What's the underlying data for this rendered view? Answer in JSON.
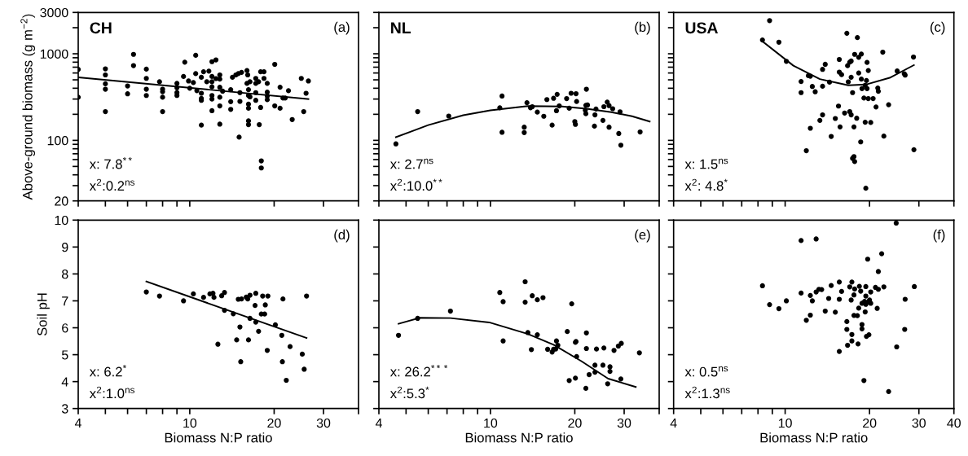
{
  "chart_data": [
    {
      "type": "scatter",
      "title": "CH",
      "ylabel": "Above-ground biomass (g m$^{−2}$)",
      "log": "xy",
      "tick_labels": "y",
      "xlim": [
        4,
        40
      ],
      "xticks": [
        4,
        {
          "value": 5,
          "label": null
        },
        {
          "value": 6,
          "label": null
        },
        {
          "value": 7,
          "label": null
        },
        {
          "value": 8,
          "label": null
        },
        {
          "value": 9,
          "label": null
        },
        10,
        20,
        30,
        40
      ],
      "ylim": [
        20,
        3000
      ],
      "yticks": [
        20,
        {
          "value": 30,
          "label": null
        },
        {
          "value": 40,
          "label": null
        },
        {
          "value": 50,
          "label": null
        },
        {
          "value": 60,
          "label": null
        },
        {
          "value": 70,
          "label": null
        },
        {
          "value": 80,
          "label": null
        },
        {
          "value": 90,
          "label": null
        },
        100,
        {
          "value": 200,
          "label": null
        },
        {
          "value": 300,
          "label": null
        },
        {
          "value": 400,
          "label": null
        },
        {
          "value": 500,
          "label": null
        },
        {
          "value": 600,
          "label": null
        },
        {
          "value": 700,
          "label": null
        },
        {
          "value": 800,
          "label": null
        },
        {
          "value": 900,
          "label": null
        },
        1000,
        {
          "value": 2000,
          "label": null
        },
        3000
      ],
      "annotations": [
        "(a)",
        "x: 7.8$^{**}$",
        "x$^{2}$:0.2$^{ns}$"
      ],
      "series": [
        {
          "marker": "circle",
          "color": "#000000",
          "x": [
            4,
            4,
            5.0,
            5.0,
            5.0,
            5.0,
            5.0,
            6.0,
            6.0,
            6.3,
            6.3,
            7.0,
            7.0,
            7.0,
            7.0,
            7.8,
            8.0,
            8.0,
            8.0,
            8.0,
            9.0,
            9.0,
            9.0,
            9.0,
            9.5,
            9.6,
            9.9,
            10.0,
            10.3,
            10.5,
            10.5,
            10.6,
            11.0,
            11.0,
            11.0,
            11.0,
            11.0,
            11.2,
            11.5,
            11.7,
            12.0,
            12.0,
            12.0,
            12.0,
            12.0,
            12.0,
            12.0,
            12.4,
            12.4,
            12.8,
            12.8,
            12.8,
            12.8,
            12.8,
            12.8,
            13.1,
            14.0,
            14.0,
            14.0,
            14.2,
            14.6,
            14.9,
            15.0,
            15.1,
            15.1,
            15.3,
            16.0,
            16.0,
            16.1,
            16.2,
            16.2,
            16.2,
            16.2,
            16.2,
            16.2,
            16.4,
            16.4,
            17.2,
            17.2,
            17.2,
            17.2,
            17.6,
            17.7,
            17.9,
            17.9,
            18.0,
            18.0,
            18.4,
            18.4,
            18.9,
            18.9,
            18.9,
            18.9,
            20.1,
            20.1,
            21.0,
            21.0,
            21.5,
            21.9,
            22.5,
            23.2,
            25.0,
            25.5,
            26.0,
            26.5
          ],
          "values": [
            660,
            315,
            670,
            570,
            450,
            390,
            215,
            425,
            345,
            985,
            730,
            665,
            520,
            390,
            330,
            475,
            390,
            365,
            315,
            215,
            455,
            405,
            356,
            330,
            547,
            800,
            485,
            400,
            465,
            590,
            960,
            375,
            535,
            350,
            305,
            290,
            150,
            620,
            475,
            630,
            810,
            547,
            475,
            415,
            330,
            300,
            220,
            850,
            517,
            570,
            510,
            410,
            315,
            250,
            154,
            370,
            385,
            280,
            228,
            535,
            570,
            590,
            109,
            356,
            282,
            610,
            640,
            455,
            570,
            385,
            330,
            262,
            235,
            168,
            152,
            475,
            318,
            520,
            455,
            356,
            290,
            475,
            152,
            620,
            240,
            58,
            48,
            620,
            520,
            455,
            360,
            325,
            295,
            755,
            250,
            411,
            235,
            308,
            308,
            375,
            174,
            520,
            215,
            350,
            485
          ]
        },
        {
          "type": "line",
          "marker": "none",
          "color": "#000000",
          "x": [
            4,
            26.5
          ],
          "values": [
            535,
            300
          ]
        }
      ]
    },
    {
      "type": "scatter",
      "title": "NL",
      "log": "xy",
      "tick_labels": false,
      "xlim": [
        4,
        40
      ],
      "xticks": [
        4,
        {
          "value": 5,
          "label": null
        },
        {
          "value": 6,
          "label": null
        },
        {
          "value": 7,
          "label": null
        },
        {
          "value": 8,
          "label": null
        },
        {
          "value": 9,
          "label": null
        },
        10,
        20,
        30,
        40
      ],
      "ylim": [
        20,
        3000
      ],
      "yticks": [
        20,
        {
          "value": 30,
          "label": null
        },
        {
          "value": 40,
          "label": null
        },
        {
          "value": 50,
          "label": null
        },
        {
          "value": 60,
          "label": null
        },
        {
          "value": 70,
          "label": null
        },
        {
          "value": 80,
          "label": null
        },
        {
          "value": 90,
          "label": null
        },
        100,
        {
          "value": 200,
          "label": null
        },
        {
          "value": 300,
          "label": null
        },
        {
          "value": 400,
          "label": null
        },
        {
          "value": 500,
          "label": null
        },
        {
          "value": 600,
          "label": null
        },
        {
          "value": 700,
          "label": null
        },
        {
          "value": 800,
          "label": null
        },
        {
          "value": 900,
          "label": null
        },
        1000,
        {
          "value": 2000,
          "label": null
        },
        3000
      ],
      "annotations": [
        "(b)",
        "x: 2.7$^{ns}$",
        "x$^{2}$:10.0$^{**}$"
      ],
      "series": [
        {
          "marker": "circle",
          "color": "#000000",
          "x": [
            4.6,
            5.5,
            7.1,
            10.8,
            11.0,
            11.0,
            13.2,
            13.2,
            13.5,
            13.9,
            14.1,
            14.7,
            15.5,
            15.9,
            16.6,
            16.8,
            17.2,
            17.3,
            17.6,
            18.7,
            19.1,
            19.4,
            20.2,
            20.3,
            20.0,
            20.1,
            21.8,
            21.9,
            21.9,
            22.0,
            22.2,
            23.5,
            23.6,
            23.8,
            25.2,
            25.4,
            26.1,
            26.5,
            26.5,
            27.3,
            28.7,
            29.0,
            29.2,
            34.2
          ],
          "values": [
            91,
            215,
            191,
            238,
            325,
            124,
            142,
            123,
            272,
            238,
            245,
            212,
            190,
            296,
            150,
            306,
            220,
            340,
            250,
            304,
            235,
            350,
            346,
            281,
            165,
            153,
            223,
            254,
            203,
            390,
            256,
            146,
            197,
            230,
            170,
            245,
            277,
            252,
            142,
            232,
            120,
            214,
            88,
            125
          ]
        },
        {
          "type": "line",
          "marker": "none",
          "color": "#000000",
          "x": [
            4.6,
            6,
            8,
            10,
            13.6,
            18,
            22,
            27,
            32,
            37
          ],
          "values": [
            109,
            150,
            195,
            222,
            249,
            246,
            232,
            212,
            190,
            165
          ]
        }
      ]
    },
    {
      "type": "scatter",
      "title": "USA",
      "log": "xy",
      "tick_labels": false,
      "xlim": [
        4,
        40
      ],
      "xticks": [
        4,
        {
          "value": 5,
          "label": null
        },
        {
          "value": 6,
          "label": null
        },
        {
          "value": 7,
          "label": null
        },
        {
          "value": 8,
          "label": null
        },
        {
          "value": 9,
          "label": null
        },
        10,
        20,
        30,
        40
      ],
      "ylim": [
        20,
        3000
      ],
      "yticks": [
        20,
        {
          "value": 30,
          "label": null
        },
        {
          "value": 40,
          "label": null
        },
        {
          "value": 50,
          "label": null
        },
        {
          "value": 60,
          "label": null
        },
        {
          "value": 70,
          "label": null
        },
        {
          "value": 80,
          "label": null
        },
        {
          "value": 90,
          "label": null
        },
        100,
        {
          "value": 200,
          "label": null
        },
        {
          "value": 300,
          "label": null
        },
        {
          "value": 400,
          "label": null
        },
        {
          "value": 500,
          "label": null
        },
        {
          "value": 600,
          "label": null
        },
        {
          "value": 700,
          "label": null
        },
        {
          "value": 800,
          "label": null
        },
        {
          "value": 900,
          "label": null
        },
        1000,
        {
          "value": 2000,
          "label": null
        },
        3000
      ],
      "annotations": [
        "(c)",
        "x: 1.5$^{ns}$",
        "x$^{2}$: 4.8$^{*}$"
      ],
      "series": [
        {
          "marker": "circle",
          "color": "#000000",
          "x": [
            8.3,
            8.8,
            9.5,
            10.1,
            11.4,
            11.4,
            11.9,
            12.1,
            12.3,
            12.3,
            12.5,
            12.8,
            13.3,
            13.6,
            13.6,
            13.9,
            13.6,
            14.4,
            14.6,
            15.1,
            15.5,
            15.6,
            15.7,
            15.9,
            15.6,
            16.3,
            16.6,
            16.7,
            16.8,
            17.0,
            17.0,
            17.2,
            17.2,
            17.2,
            17.4,
            17.4,
            17.6,
            17.6,
            17.7,
            18.0,
            18.1,
            18.3,
            18.3,
            17.7,
            18.7,
            18.6,
            18.7,
            18.8,
            19.1,
            19.3,
            19.3,
            19.4,
            19.5,
            19.6,
            19.6,
            19.8,
            19.8,
            20.2,
            20.6,
            21.1,
            21.4,
            21.5,
            22.3,
            22.5,
            23.4,
            25.1,
            26.6,
            26.8,
            28.7,
            28.8
          ],
          "values": [
            1443,
            2415,
            1361,
            818,
            478,
            356,
            76,
            559,
            551,
            138,
            419,
            364,
            170,
            422,
            660,
            756,
            197,
            470,
            111,
            179,
            249,
            614,
            143,
            574,
            860,
            207,
            1725,
            729,
            474,
            799,
            215,
            824,
            536,
            197,
            356,
            62,
            65,
            143,
            57,
            180,
            1538,
            911,
            600,
            985,
            510,
            96,
            993,
            396,
            308,
            162,
            432,
            28,
            491,
            795,
            396,
            641,
            304,
            161,
            304,
            243,
            402,
            369,
            1044,
            112,
            258,
            632,
            588,
            567,
            917,
            78
          ]
        },
        {
          "type": "line",
          "marker": "none",
          "color": "#000000",
          "x": [
            8.3,
            10.7,
            13.3,
            16.8,
            19.4,
            23.6,
            28.8
          ],
          "values": [
            1390,
            729,
            510,
            432,
            441,
            528,
            740
          ]
        }
      ]
    },
    {
      "type": "scatter",
      "xlabel": "Biomass N:P ratio",
      "ylabel": "Soil pH",
      "log": "x",
      "xlim": [
        4,
        40
      ],
      "xticks": [
        4,
        {
          "value": 5,
          "label": null
        },
        {
          "value": 6,
          "label": null
        },
        {
          "value": 7,
          "label": null
        },
        {
          "value": 8,
          "label": null
        },
        {
          "value": 9,
          "label": null
        },
        10,
        20,
        30,
        {
          "value": 40,
          "label": null
        }
      ],
      "ylim": [
        3,
        10
      ],
      "yticks": [
        3,
        4,
        5,
        6,
        7,
        8,
        9,
        10
      ],
      "annotations": [
        "(d)",
        "x: 6.2$^{*}$",
        "x$^{2}$:1.0$^{ns}$"
      ],
      "series": [
        {
          "marker": "circle",
          "color": "#000000",
          "x": [
            7.0,
            7.8,
            9.5,
            10.3,
            11.2,
            11.8,
            12.1,
            12.2,
            12.6,
            13.0,
            13.3,
            13.3,
            14.3,
            14.7,
            14.9,
            15.1,
            15.2,
            15.3,
            15.9,
            16.1,
            16.2,
            16.4,
            16.4,
            17.2,
            17.1,
            17.2,
            17.6,
            18.0,
            18.2,
            18.5,
            18.6,
            18.9,
            19.0,
            20.2,
            21.3,
            21.5,
            21.4,
            22.1,
            22.8,
            25.2,
            25.6,
            26.1
          ],
          "values": [
            7.33,
            7.18,
            7.0,
            7.26,
            7.13,
            7.26,
            7.28,
            7.13,
            5.39,
            7.19,
            7.31,
            6.65,
            6.52,
            5.55,
            7.06,
            6.03,
            4.74,
            7.07,
            7.14,
            7.07,
            5.55,
            7.21,
            6.35,
            7.28,
            6.83,
            6.21,
            5.87,
            6.51,
            7.18,
            6.51,
            6.85,
            5.16,
            7.18,
            6.11,
            5.72,
            7.07,
            4.74,
            4.05,
            5.3,
            5.02,
            4.46,
            7.18
          ]
        },
        {
          "type": "line",
          "marker": "none",
          "color": "#000000",
          "x": [
            7.0,
            26.1
          ],
          "values": [
            7.72,
            5.62
          ]
        }
      ]
    },
    {
      "type": "scatter",
      "xlabel": "Biomass N:P ratio",
      "log": "x",
      "tick_labels": "x",
      "xlim": [
        4,
        40
      ],
      "xticks": [
        4,
        {
          "value": 5,
          "label": null
        },
        {
          "value": 6,
          "label": null
        },
        {
          "value": 7,
          "label": null
        },
        {
          "value": 8,
          "label": null
        },
        {
          "value": 9,
          "label": null
        },
        10,
        20,
        30,
        {
          "value": 40,
          "label": null
        }
      ],
      "ylim": [
        3,
        10
      ],
      "yticks": [
        3,
        4,
        5,
        6,
        7,
        8,
        9,
        10
      ],
      "annotations": [
        "(e)",
        "x: 26.2$^{***}$",
        "x$^{2}$:5.3$^{*}$"
      ],
      "series": [
        {
          "marker": "circle",
          "color": "#000000",
          "x": [
            4.7,
            5.5,
            7.2,
            10.8,
            11.1,
            11.1,
            13.3,
            13.3,
            13.6,
            14.0,
            14.1,
            14.7,
            14.7,
            15.4,
            16.0,
            16.6,
            16.8,
            17.1,
            17.2,
            17.4,
            19.5,
            18.8,
            19.1,
            20.1,
            20.2,
            20.3,
            20.1,
            22.0,
            22.0,
            21.9,
            22.5,
            23.6,
            23.6,
            23.9,
            25.2,
            25.4,
            26.2,
            26.7,
            26.7,
            27.6,
            28.6,
            29.3,
            29.2,
            34.0
          ],
          "values": [
            5.72,
            6.35,
            6.62,
            7.31,
            6.97,
            5.51,
            7.71,
            6.95,
            5.82,
            5.19,
            7.19,
            7.04,
            5.74,
            7.12,
            5.2,
            5.1,
            5.2,
            5.21,
            5.51,
            5.35,
            6.89,
            5.86,
            4.04,
            5.46,
            5.49,
            4.93,
            4.13,
            5.81,
            5.23,
            3.75,
            4.26,
            4.61,
            4.35,
            5.21,
            4.61,
            5.25,
            3.92,
            4.55,
            4.38,
            5.16,
            5.32,
            5.42,
            4.1,
            5.07
          ]
        },
        {
          "type": "line",
          "marker": "none",
          "color": "#000000",
          "x": [
            4.7,
            5.6,
            7.2,
            9.9,
            13.6,
            16.8,
            21.1,
            26.3,
            33
          ],
          "values": [
            6.15,
            6.37,
            6.36,
            6.2,
            5.77,
            5.37,
            4.76,
            4.11,
            3.8
          ]
        }
      ]
    },
    {
      "type": "scatter",
      "xlabel": "Biomass N:P ratio",
      "log": "x",
      "tick_labels": "x",
      "xlim": [
        4,
        40
      ],
      "xticks": [
        4,
        {
          "value": 5,
          "label": null
        },
        {
          "value": 6,
          "label": null
        },
        {
          "value": 7,
          "label": null
        },
        {
          "value": 8,
          "label": null
        },
        {
          "value": 9,
          "label": null
        },
        10,
        20,
        30,
        40
      ],
      "ylim": [
        3,
        10
      ],
      "yticks": [
        3,
        4,
        5,
        6,
        7,
        8,
        9,
        10
      ],
      "annotations": [
        "(f)",
        "x: 0.5$^{ns}$",
        "x$^{2}$:1.3$^{ns}$"
      ],
      "series": [
        {
          "marker": "circle",
          "color": "#000000",
          "x": [
            8.3,
            8.8,
            9.5,
            10.1,
            11.4,
            11.4,
            11.9,
            12.3,
            12.3,
            12.5,
            12.9,
            12.9,
            13.2,
            13.5,
            13.9,
            14.3,
            14.6,
            15.1,
            15.6,
            15.6,
            15.6,
            15.9,
            16.6,
            16.6,
            16.7,
            17.0,
            17.2,
            17.3,
            17.3,
            17.3,
            17.6,
            17.7,
            17.6,
            18.1,
            18.2,
            18.3,
            18.4,
            18.6,
            18.8,
            18.8,
            18.8,
            19.1,
            19.2,
            19.3,
            19.4,
            19.4,
            19.4,
            19.5,
            19.7,
            19.9,
            19.8,
            20.0,
            20.2,
            20.2,
            21.0,
            21.3,
            21.5,
            21.5,
            22.1,
            22.5,
            23.4,
            24.9,
            25.0,
            26.7,
            26.8,
            28.9
          ],
          "values": [
            7.56,
            6.86,
            6.71,
            7.0,
            9.24,
            7.29,
            6.28,
            6.47,
            7.2,
            7.0,
            9.3,
            7.33,
            7.43,
            7.42,
            6.62,
            7.09,
            7.57,
            6.58,
            5.12,
            7.7,
            7.06,
            7.35,
            5.94,
            6.23,
            5.35,
            7.52,
            7.03,
            7.7,
            5.75,
            5.51,
            7.22,
            7.44,
            6.46,
            6.45,
            5.4,
            6.73,
            7.54,
            7.36,
            6.12,
            5.96,
            6.91,
            4.04,
            6.98,
            6.59,
            6.87,
            7.53,
            7.18,
            5.68,
            8.55,
            5.74,
            6.96,
            7.03,
            6.91,
            7.33,
            7.5,
            6.72,
            8.09,
            7.43,
            8.75,
            7.52,
            3.63,
            9.89,
            5.29,
            5.94,
            7.06,
            7.53
          ]
        }
      ]
    }
  ]
}
